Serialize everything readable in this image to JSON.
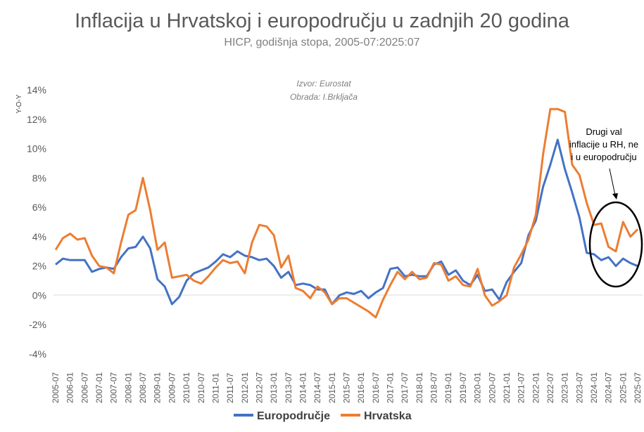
{
  "chart_data": {
    "type": "line",
    "title": "Inflacija u Hrvatskoj i europodručju u zadnjih 20 godina",
    "subtitle": "HICP, godišnja stopa, 2005-07:2025:07",
    "ylabel": "Y-O-Y",
    "ylim": [
      -4,
      14
    ],
    "y_ticks": [
      "-4%",
      "-2%",
      "0%",
      "2%",
      "4%",
      "6%",
      "8%",
      "10%",
      "12%",
      "14%"
    ],
    "x_ticks": [
      "2005-07",
      "2006-01",
      "2006-07",
      "2007-01",
      "2007-07",
      "2008-01",
      "2008-07",
      "2009-01",
      "2009-07",
      "2010-01",
      "2010-07",
      "2011-01",
      "2011-07",
      "2012-01",
      "2012-07",
      "2013-01",
      "2013-07",
      "2014-01",
      "2014-07",
      "2015-01",
      "2015-07",
      "2016-01",
      "2016-07",
      "2017-01",
      "2017-07",
      "2018-01",
      "2018-07",
      "2019-01",
      "2019-07",
      "2020-01",
      "2020-07",
      "2021-01",
      "2021-07",
      "2022-01",
      "2022-07",
      "2023-01",
      "2023-07",
      "2024-01",
      "2024-07",
      "2025-01",
      "2025-07"
    ],
    "source": "Izvor: Eurostat",
    "processing": "Obrada: I.Brkljača",
    "annotation": [
      "Drugi val",
      "inflacije u RH, ne",
      "i u europodručju"
    ],
    "legend_position": "bottom",
    "grid": false,
    "series": [
      {
        "name": "Europodručje",
        "color": "#4472C4",
        "points": [
          [
            "2005-07",
            2.1
          ],
          [
            "2005-10",
            2.5
          ],
          [
            "2006-01",
            2.4
          ],
          [
            "2006-04",
            2.4
          ],
          [
            "2006-07",
            2.4
          ],
          [
            "2006-10",
            1.6
          ],
          [
            "2007-01",
            1.8
          ],
          [
            "2007-04",
            1.9
          ],
          [
            "2007-07",
            1.8
          ],
          [
            "2007-10",
            2.6
          ],
          [
            "2008-01",
            3.2
          ],
          [
            "2008-04",
            3.3
          ],
          [
            "2008-07",
            4.0
          ],
          [
            "2008-10",
            3.2
          ],
          [
            "2009-01",
            1.1
          ],
          [
            "2009-04",
            0.6
          ],
          [
            "2009-07",
            -0.6
          ],
          [
            "2009-10",
            -0.1
          ],
          [
            "2010-01",
            1.0
          ],
          [
            "2010-04",
            1.5
          ],
          [
            "2010-07",
            1.7
          ],
          [
            "2010-10",
            1.9
          ],
          [
            "2011-01",
            2.3
          ],
          [
            "2011-04",
            2.8
          ],
          [
            "2011-07",
            2.6
          ],
          [
            "2011-10",
            3.0
          ],
          [
            "2012-01",
            2.7
          ],
          [
            "2012-04",
            2.6
          ],
          [
            "2012-07",
            2.4
          ],
          [
            "2012-10",
            2.5
          ],
          [
            "2013-01",
            2.0
          ],
          [
            "2013-04",
            1.2
          ],
          [
            "2013-07",
            1.6
          ],
          [
            "2013-10",
            0.7
          ],
          [
            "2014-01",
            0.8
          ],
          [
            "2014-04",
            0.7
          ],
          [
            "2014-07",
            0.4
          ],
          [
            "2014-10",
            0.4
          ],
          [
            "2015-01",
            -0.6
          ],
          [
            "2015-04",
            0.0
          ],
          [
            "2015-07",
            0.2
          ],
          [
            "2015-10",
            0.1
          ],
          [
            "2016-01",
            0.3
          ],
          [
            "2016-04",
            -0.2
          ],
          [
            "2016-07",
            0.2
          ],
          [
            "2016-10",
            0.5
          ],
          [
            "2017-01",
            1.8
          ],
          [
            "2017-04",
            1.9
          ],
          [
            "2017-07",
            1.3
          ],
          [
            "2017-10",
            1.4
          ],
          [
            "2018-01",
            1.3
          ],
          [
            "2018-04",
            1.3
          ],
          [
            "2018-07",
            2.1
          ],
          [
            "2018-10",
            2.3
          ],
          [
            "2019-01",
            1.4
          ],
          [
            "2019-04",
            1.7
          ],
          [
            "2019-07",
            1.0
          ],
          [
            "2019-10",
            0.7
          ],
          [
            "2020-01",
            1.4
          ],
          [
            "2020-04",
            0.3
          ],
          [
            "2020-07",
            0.4
          ],
          [
            "2020-10",
            -0.3
          ],
          [
            "2021-01",
            0.9
          ],
          [
            "2021-04",
            1.6
          ],
          [
            "2021-07",
            2.2
          ],
          [
            "2021-10",
            4.1
          ],
          [
            "2022-01",
            5.1
          ],
          [
            "2022-04",
            7.4
          ],
          [
            "2022-07",
            8.9
          ],
          [
            "2022-10",
            10.6
          ],
          [
            "2023-01",
            8.6
          ],
          [
            "2023-04",
            7.0
          ],
          [
            "2023-07",
            5.3
          ],
          [
            "2023-10",
            2.9
          ],
          [
            "2024-01",
            2.8
          ],
          [
            "2024-04",
            2.4
          ],
          [
            "2024-07",
            2.6
          ],
          [
            "2024-10",
            2.0
          ],
          [
            "2025-01",
            2.5
          ],
          [
            "2025-04",
            2.2
          ],
          [
            "2025-07",
            2.0
          ]
        ]
      },
      {
        "name": "Hrvatska",
        "color": "#ED7D31",
        "points": [
          [
            "2005-07",
            3.1
          ],
          [
            "2005-10",
            3.9
          ],
          [
            "2006-01",
            4.2
          ],
          [
            "2006-04",
            3.8
          ],
          [
            "2006-07",
            3.9
          ],
          [
            "2006-10",
            2.7
          ],
          [
            "2007-01",
            2.0
          ],
          [
            "2007-04",
            1.9
          ],
          [
            "2007-07",
            1.5
          ],
          [
            "2007-10",
            3.6
          ],
          [
            "2008-01",
            5.5
          ],
          [
            "2008-04",
            5.8
          ],
          [
            "2008-07",
            8.0
          ],
          [
            "2008-10",
            5.8
          ],
          [
            "2009-01",
            3.1
          ],
          [
            "2009-04",
            3.6
          ],
          [
            "2009-07",
            1.2
          ],
          [
            "2009-10",
            1.3
          ],
          [
            "2010-01",
            1.4
          ],
          [
            "2010-04",
            1.0
          ],
          [
            "2010-07",
            0.8
          ],
          [
            "2010-10",
            1.3
          ],
          [
            "2011-01",
            1.9
          ],
          [
            "2011-04",
            2.4
          ],
          [
            "2011-07",
            2.2
          ],
          [
            "2011-10",
            2.3
          ],
          [
            "2012-01",
            1.5
          ],
          [
            "2012-04",
            3.6
          ],
          [
            "2012-07",
            4.8
          ],
          [
            "2012-10",
            4.7
          ],
          [
            "2013-01",
            4.1
          ],
          [
            "2013-04",
            1.9
          ],
          [
            "2013-07",
            2.7
          ],
          [
            "2013-10",
            0.5
          ],
          [
            "2014-01",
            0.3
          ],
          [
            "2014-04",
            -0.2
          ],
          [
            "2014-07",
            0.6
          ],
          [
            "2014-10",
            0.2
          ],
          [
            "2015-01",
            -0.6
          ],
          [
            "2015-04",
            -0.2
          ],
          [
            "2015-07",
            -0.2
          ],
          [
            "2015-10",
            -0.5
          ],
          [
            "2016-01",
            -0.8
          ],
          [
            "2016-04",
            -1.1
          ],
          [
            "2016-07",
            -1.5
          ],
          [
            "2016-10",
            -0.3
          ],
          [
            "2017-01",
            0.7
          ],
          [
            "2017-04",
            1.6
          ],
          [
            "2017-07",
            1.1
          ],
          [
            "2017-10",
            1.6
          ],
          [
            "2018-01",
            1.1
          ],
          [
            "2018-04",
            1.2
          ],
          [
            "2018-07",
            2.2
          ],
          [
            "2018-10",
            2.1
          ],
          [
            "2019-01",
            1.0
          ],
          [
            "2019-04",
            1.3
          ],
          [
            "2019-07",
            0.7
          ],
          [
            "2019-10",
            0.6
          ],
          [
            "2020-01",
            1.8
          ],
          [
            "2020-04",
            0.0
          ],
          [
            "2020-07",
            -0.7
          ],
          [
            "2020-10",
            -0.4
          ],
          [
            "2021-01",
            0.0
          ],
          [
            "2021-04",
            1.9
          ],
          [
            "2021-07",
            2.8
          ],
          [
            "2021-10",
            3.8
          ],
          [
            "2022-01",
            5.5
          ],
          [
            "2022-04",
            9.6
          ],
          [
            "2022-07",
            12.7
          ],
          [
            "2022-10",
            12.7
          ],
          [
            "2023-01",
            12.5
          ],
          [
            "2023-04",
            8.9
          ],
          [
            "2023-07",
            8.2
          ],
          [
            "2023-10",
            6.3
          ],
          [
            "2024-01",
            4.8
          ],
          [
            "2024-04",
            4.9
          ],
          [
            "2024-07",
            3.3
          ],
          [
            "2024-10",
            3.0
          ],
          [
            "2025-01",
            5.0
          ],
          [
            "2025-04",
            4.0
          ],
          [
            "2025-07",
            4.5
          ]
        ]
      }
    ]
  }
}
